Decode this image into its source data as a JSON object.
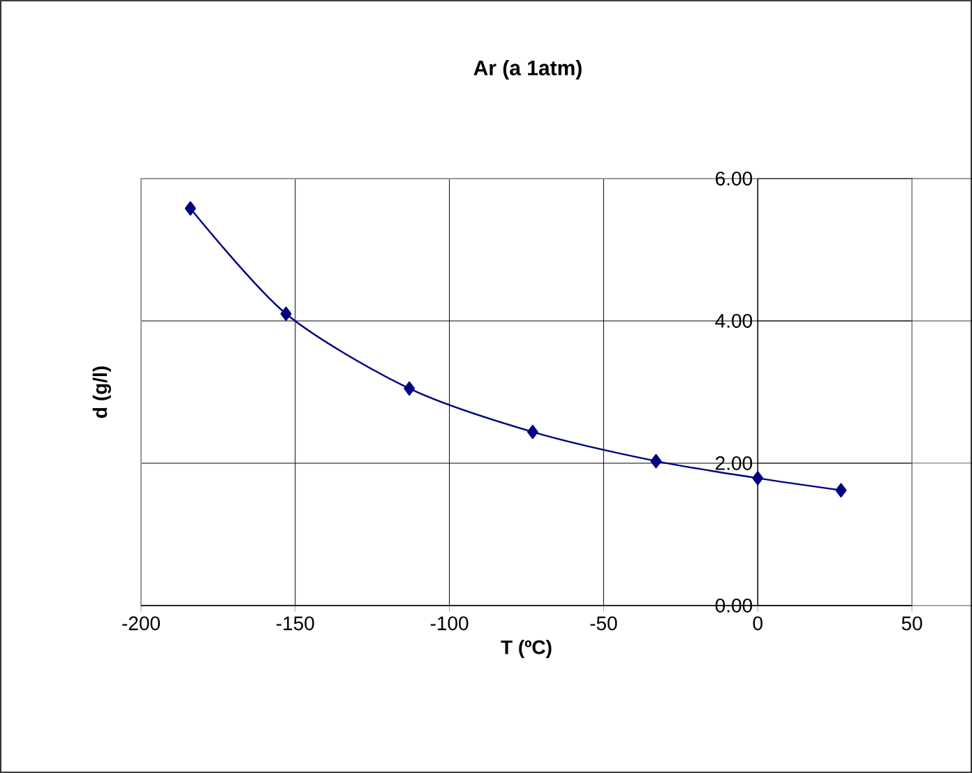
{
  "chart_data": {
    "type": "line",
    "title": "Ar (a 1atm)",
    "xlabel": "T (ºC)",
    "ylabel": "d (g/l)",
    "x": [
      -184,
      -153,
      -113,
      -73,
      -33,
      0,
      27
    ],
    "series": [
      {
        "color": "#000080",
        "values": [
          5.58,
          4.1,
          3.05,
          2.44,
          2.03,
          1.79,
          1.62
        ]
      }
    ],
    "xlim": [
      -200,
      50
    ],
    "xticks": [
      -200,
      -150,
      -100,
      -50,
      0,
      50
    ],
    "ylim": [
      0,
      6
    ],
    "yticks": [
      {
        "value": 0,
        "label": "0.00"
      },
      {
        "value": 2,
        "label": "2.00"
      },
      {
        "value": 4,
        "label": "4.00"
      },
      {
        "value": 6,
        "label": "6.00"
      }
    ],
    "grid": true,
    "legend": false,
    "marker": "diamond",
    "line_style": "solid"
  }
}
